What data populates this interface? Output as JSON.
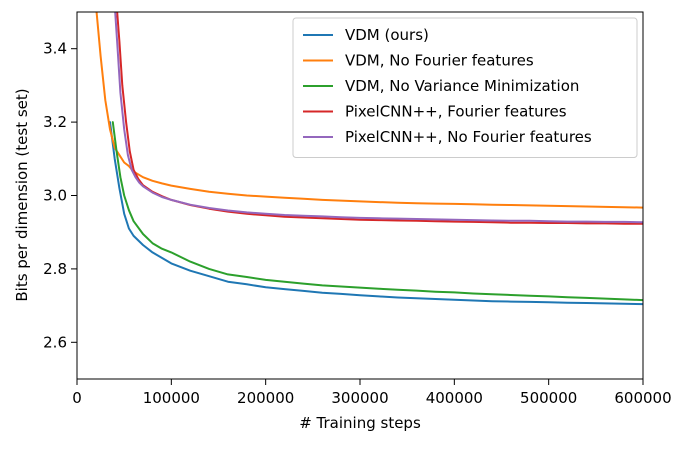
{
  "chart_data": {
    "type": "line",
    "title": "",
    "xlabel": "# Training steps",
    "ylabel": "Bits per dimension (test set)",
    "xlim": [
      0,
      600000
    ],
    "ylim": [
      2.5,
      3.5
    ],
    "xticks": [
      0,
      100000,
      200000,
      300000,
      400000,
      500000,
      600000
    ],
    "xtick_labels": [
      "0",
      "100000",
      "200000",
      "300000",
      "400000",
      "500000",
      "600000"
    ],
    "yticks": [
      2.6,
      2.8,
      3.0,
      3.2,
      3.4
    ],
    "ytick_labels": [
      "2.6",
      "2.8",
      "3.0",
      "3.2",
      "3.4"
    ],
    "grid": false,
    "legend_position": "top-right",
    "series": [
      {
        "name": "VDM (ours)",
        "color": "#1f77b4",
        "x": [
          35000,
          40000,
          45000,
          50000,
          55000,
          60000,
          70000,
          80000,
          90000,
          100000,
          120000,
          140000,
          160000,
          180000,
          200000,
          220000,
          240000,
          260000,
          280000,
          300000,
          320000,
          340000,
          360000,
          380000,
          400000,
          420000,
          440000,
          460000,
          480000,
          500000,
          520000,
          540000,
          560000,
          580000,
          600000
        ],
        "y": [
          3.2,
          3.1,
          3.02,
          2.95,
          2.91,
          2.89,
          2.865,
          2.845,
          2.83,
          2.815,
          2.795,
          2.78,
          2.765,
          2.758,
          2.75,
          2.745,
          2.74,
          2.735,
          2.732,
          2.728,
          2.725,
          2.722,
          2.72,
          2.718,
          2.716,
          2.714,
          2.712,
          2.711,
          2.71,
          2.709,
          2.708,
          2.707,
          2.706,
          2.705,
          2.704
        ]
      },
      {
        "name": "VDM, No Fourier features",
        "color": "#ff7f0e",
        "x": [
          20000,
          25000,
          30000,
          35000,
          40000,
          45000,
          50000,
          55000,
          60000,
          70000,
          80000,
          90000,
          100000,
          120000,
          140000,
          160000,
          180000,
          200000,
          220000,
          240000,
          260000,
          280000,
          300000,
          320000,
          340000,
          360000,
          380000,
          400000,
          420000,
          440000,
          460000,
          480000,
          500000,
          520000,
          540000,
          560000,
          580000,
          600000
        ],
        "y": [
          3.52,
          3.38,
          3.26,
          3.18,
          3.13,
          3.11,
          3.09,
          3.08,
          3.065,
          3.05,
          3.04,
          3.033,
          3.027,
          3.018,
          3.01,
          3.005,
          3.0,
          2.997,
          2.994,
          2.991,
          2.988,
          2.986,
          2.984,
          2.982,
          2.98,
          2.979,
          2.978,
          2.977,
          2.976,
          2.975,
          2.974,
          2.973,
          2.972,
          2.971,
          2.97,
          2.969,
          2.968,
          2.967
        ]
      },
      {
        "name": "VDM, No Variance Minimization",
        "color": "#2ca02c",
        "x": [
          38000,
          42000,
          46000,
          50000,
          55000,
          60000,
          70000,
          80000,
          90000,
          100000,
          120000,
          140000,
          160000,
          180000,
          200000,
          220000,
          240000,
          260000,
          280000,
          300000,
          320000,
          340000,
          360000,
          380000,
          400000,
          420000,
          440000,
          460000,
          480000,
          500000,
          520000,
          540000,
          560000,
          580000,
          600000
        ],
        "y": [
          3.2,
          3.12,
          3.05,
          3.0,
          2.96,
          2.93,
          2.895,
          2.87,
          2.855,
          2.845,
          2.82,
          2.8,
          2.785,
          2.778,
          2.77,
          2.765,
          2.76,
          2.755,
          2.752,
          2.749,
          2.746,
          2.743,
          2.741,
          2.738,
          2.736,
          2.733,
          2.731,
          2.729,
          2.727,
          2.725,
          2.723,
          2.721,
          2.719,
          2.717,
          2.715
        ]
      },
      {
        "name": "PixelCNN++, Fourier features",
        "color": "#d62728",
        "x": [
          42000,
          45000,
          48000,
          52000,
          56000,
          60000,
          65000,
          70000,
          80000,
          90000,
          100000,
          120000,
          140000,
          160000,
          180000,
          200000,
          220000,
          240000,
          260000,
          280000,
          300000,
          320000,
          340000,
          360000,
          380000,
          400000,
          420000,
          440000,
          460000,
          480000,
          500000,
          520000,
          540000,
          560000,
          580000,
          600000
        ],
        "y": [
          3.52,
          3.42,
          3.3,
          3.2,
          3.12,
          3.07,
          3.045,
          3.028,
          3.01,
          2.998,
          2.988,
          2.974,
          2.964,
          2.956,
          2.95,
          2.946,
          2.942,
          2.94,
          2.938,
          2.936,
          2.934,
          2.933,
          2.932,
          2.931,
          2.93,
          2.929,
          2.928,
          2.927,
          2.926,
          2.926,
          2.925,
          2.925,
          2.924,
          2.924,
          2.923,
          2.923
        ]
      },
      {
        "name": "PixelCNN++, No Fourier features",
        "color": "#9467bd",
        "x": [
          40000,
          43000,
          46000,
          50000,
          54000,
          58000,
          62000,
          66000,
          70000,
          80000,
          90000,
          100000,
          120000,
          140000,
          160000,
          180000,
          200000,
          220000,
          240000,
          260000,
          280000,
          300000,
          320000,
          340000,
          360000,
          380000,
          400000,
          420000,
          440000,
          460000,
          480000,
          500000,
          520000,
          540000,
          560000,
          580000,
          600000
        ],
        "y": [
          3.52,
          3.4,
          3.28,
          3.18,
          3.11,
          3.07,
          3.05,
          3.035,
          3.025,
          3.008,
          2.996,
          2.988,
          2.975,
          2.966,
          2.959,
          2.954,
          2.95,
          2.947,
          2.945,
          2.943,
          2.941,
          2.939,
          2.938,
          2.937,
          2.936,
          2.935,
          2.934,
          2.933,
          2.932,
          2.931,
          2.931,
          2.93,
          2.929,
          2.929,
          2.928,
          2.928,
          2.927
        ]
      }
    ]
  }
}
